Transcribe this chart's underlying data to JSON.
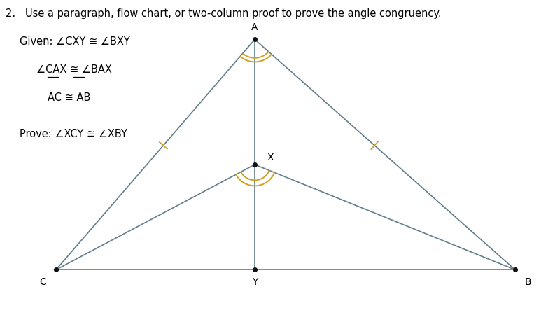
{
  "title_text": "2.   Use a paragraph, flow chart, or two-column proof to prove the angle congruency.",
  "given_line1": "Given: ∠CXY ≅ ∠BXY",
  "given_line2": "∠CAX ≅ ∠BAX",
  "given_line3": "AC ≅ AB",
  "prove_line": "Prove: ∠XCY ≅ ∠XBY",
  "A": [
    0.455,
    0.88
  ],
  "C": [
    0.1,
    0.18
  ],
  "B": [
    0.92,
    0.18
  ],
  "Y": [
    0.455,
    0.18
  ],
  "X": [
    0.455,
    0.5
  ],
  "line_color": "#607d8b",
  "dot_color": "#111111",
  "angle_arc_color": "#d4a020",
  "tick_color": "#d4a020",
  "label_A": "A",
  "label_C": "C",
  "label_B": "B",
  "label_Y": "Y",
  "label_X": "X",
  "font_size_text": 10.5,
  "font_size_label": 10,
  "background_color": "#ffffff",
  "xlim": [
    0.0,
    1.0
  ],
  "ylim": [
    0.0,
    1.0
  ]
}
